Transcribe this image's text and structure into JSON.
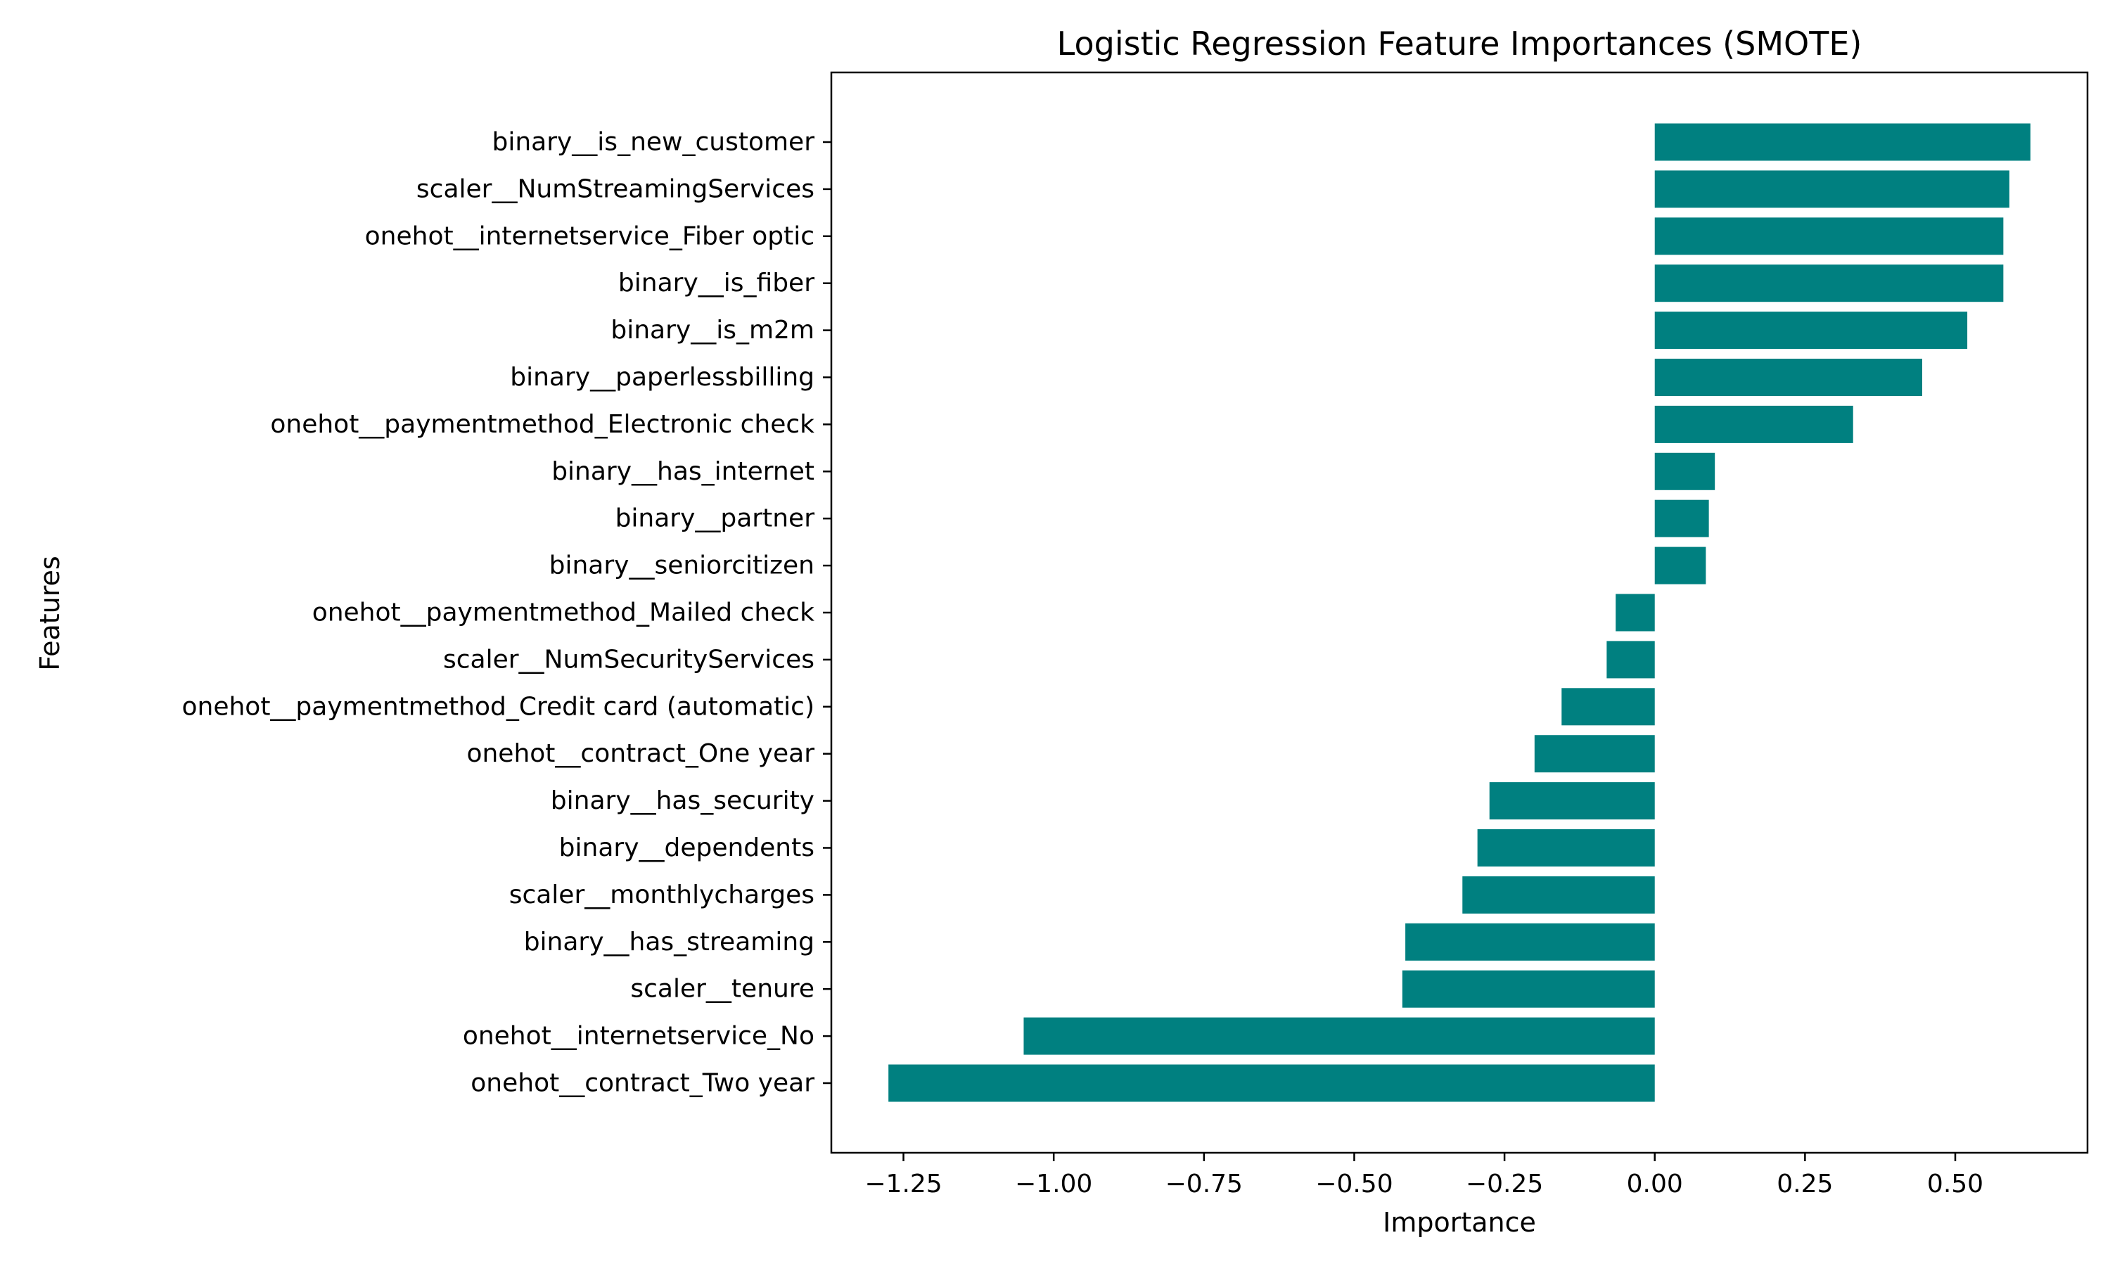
{
  "chart_data": {
    "type": "bar",
    "orientation": "horizontal",
    "title": "Logistic Regression Feature Importances (SMOTE)",
    "xlabel": "Importance",
    "ylabel": "Features",
    "categories": [
      "binary__is_new_customer",
      "scaler__NumStreamingServices",
      "onehot__internetservice_Fiber optic",
      "binary__is_fiber",
      "binary__is_m2m",
      "binary__paperlessbilling",
      "onehot__paymentmethod_Electronic check",
      "binary__has_internet",
      "binary__partner",
      "binary__seniorcitizen",
      "onehot__paymentmethod_Mailed check",
      "scaler__NumSecurityServices",
      "onehot__paymentmethod_Credit card (automatic)",
      "onehot__contract_One year",
      "binary__has_security",
      "binary__dependents",
      "scaler__monthlycharges",
      "binary__has_streaming",
      "scaler__tenure",
      "onehot__internetservice_No",
      "onehot__contract_Two year"
    ],
    "values": [
      0.625,
      0.59,
      0.58,
      0.58,
      0.52,
      0.445,
      0.33,
      0.1,
      0.09,
      0.085,
      -0.065,
      -0.08,
      -0.155,
      -0.2,
      -0.275,
      -0.295,
      -0.32,
      -0.415,
      -0.42,
      -1.05,
      -1.275
    ],
    "xlim": [
      -1.37,
      0.72
    ],
    "xticks": [
      "−1.25",
      "−1.00",
      "−0.75",
      "−0.50",
      "−0.25",
      "0.00",
      "0.25",
      "0.50"
    ],
    "xtick_values": [
      -1.25,
      -1.0,
      -0.75,
      -0.5,
      -0.25,
      0.0,
      0.25,
      0.5
    ],
    "grid": false,
    "bar_color": "#008080"
  }
}
